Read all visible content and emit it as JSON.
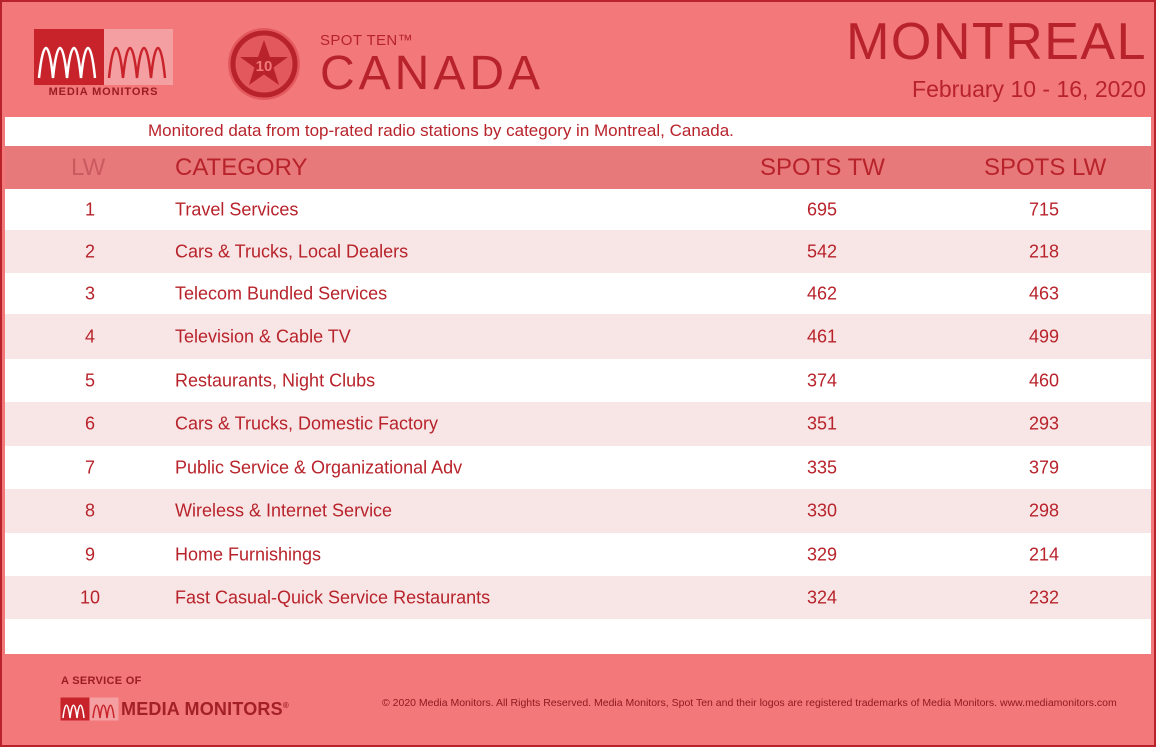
{
  "header": {
    "logo_text": "MEDIA MONITORS",
    "badge_number": "10",
    "spot_ten": "SPOT TEN™",
    "country": "CANADA",
    "city": "MONTREAL",
    "dates": "February 10 - 16, 2020"
  },
  "subtitle": "Monitored data from top-rated radio stations by category in Montreal, Canada.",
  "table": {
    "headers": {
      "rank": "LW",
      "category": "CATEGORY",
      "spots_tw": "SPOTS TW",
      "spots_lw": "SPOTS LW"
    },
    "rows": [
      {
        "rank": "1",
        "category": "Travel Services",
        "spots_tw": "695",
        "spots_lw": "715"
      },
      {
        "rank": "2",
        "category": "Cars & Trucks, Local Dealers",
        "spots_tw": "542",
        "spots_lw": "218"
      },
      {
        "rank": "3",
        "category": "Telecom Bundled Services",
        "spots_tw": "462",
        "spots_lw": "463"
      },
      {
        "rank": "4",
        "category": "Television & Cable TV",
        "spots_tw": "461",
        "spots_lw": "499"
      },
      {
        "rank": "5",
        "category": "Restaurants, Night Clubs",
        "spots_tw": "374",
        "spots_lw": "460"
      },
      {
        "rank": "6",
        "category": "Cars & Trucks, Domestic Factory",
        "spots_tw": "351",
        "spots_lw": "293"
      },
      {
        "rank": "7",
        "category": "Public Service & Organizational Adv",
        "spots_tw": "335",
        "spots_lw": "379"
      },
      {
        "rank": "8",
        "category": "Wireless & Internet Service",
        "spots_tw": "330",
        "spots_lw": "298"
      },
      {
        "rank": "9",
        "category": "Home Furnishings",
        "spots_tw": "329",
        "spots_lw": "214"
      },
      {
        "rank": "10",
        "category": "Fast Casual-Quick Service Restaurants",
        "spots_tw": "324",
        "spots_lw": "232"
      }
    ]
  },
  "footer": {
    "service_of": "A SERVICE OF",
    "brand": "MEDIA MONITORS",
    "registered_mark": "®",
    "copyright": "© 2020 Media Monitors. All Rights Reserved. Media Monitors, Spot Ten and their logos are registered trademarks of Media Monitors. www.mediamonitors.com"
  },
  "colors": {
    "background": "#f2787a",
    "accent": "#b8232b",
    "header_row": "#e8797a",
    "alt_row": "#f8e6e6"
  }
}
